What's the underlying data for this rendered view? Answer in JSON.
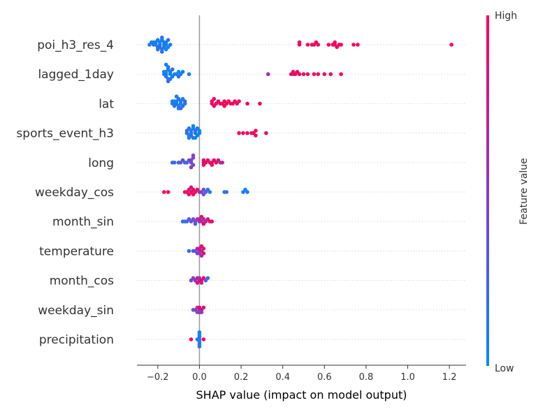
{
  "chart_data": {
    "type": "scatter",
    "subtype": "shap-beeswarm",
    "xlabel": "SHAP value (impact on model output)",
    "xlim": [
      -0.3,
      1.28
    ],
    "x_ticks": [
      -0.2,
      0.0,
      0.2,
      0.4,
      0.6,
      0.8,
      1.0,
      1.2
    ],
    "x_tick_labels": [
      "−0.2",
      "0.0",
      "0.2",
      "0.4",
      "0.6",
      "0.8",
      "1.0",
      "1.2"
    ],
    "zero_line": true,
    "grid": false,
    "colorbar": {
      "label": "Feature value",
      "high_label": "High",
      "low_label": "Low",
      "high_color": "#ff0052",
      "mid_color": "#8a3cc8",
      "low_color": "#008bfb",
      "position": "right"
    },
    "features": [
      {
        "name": "poi_h3_res_4",
        "values": [
          [
            -0.24,
            0.05
          ],
          [
            -0.23,
            0.1
          ],
          [
            -0.22,
            0.2
          ],
          [
            -0.22,
            0.05
          ],
          [
            -0.21,
            0.0
          ],
          [
            -0.21,
            0.15
          ],
          [
            -0.2,
            0.1
          ],
          [
            -0.2,
            0.05
          ],
          [
            -0.19,
            0.1
          ],
          [
            -0.19,
            0.0
          ],
          [
            -0.19,
            0.2
          ],
          [
            -0.18,
            0.05
          ],
          [
            -0.18,
            0.1
          ],
          [
            -0.18,
            0.15
          ],
          [
            -0.17,
            0.0
          ],
          [
            -0.17,
            0.1
          ],
          [
            -0.17,
            0.2
          ],
          [
            -0.16,
            0.05
          ],
          [
            -0.16,
            0.1
          ],
          [
            -0.15,
            0.0
          ],
          [
            -0.15,
            0.15
          ],
          [
            -0.14,
            0.1
          ],
          [
            -0.16,
            0.0
          ],
          [
            -0.18,
            0.2
          ],
          [
            -0.2,
            0.15
          ],
          [
            0.48,
            0.95
          ],
          [
            0.48,
            0.9
          ],
          [
            0.52,
            1.0
          ],
          [
            0.54,
            0.95
          ],
          [
            0.55,
            0.9
          ],
          [
            0.56,
            1.0
          ],
          [
            0.57,
            0.95
          ],
          [
            0.62,
            1.0
          ],
          [
            0.64,
            0.9
          ],
          [
            0.65,
            0.95
          ],
          [
            0.65,
            1.0
          ],
          [
            0.66,
            0.95
          ],
          [
            0.67,
            0.9
          ],
          [
            0.68,
            1.0
          ],
          [
            0.74,
            0.95
          ],
          [
            0.76,
            1.0
          ],
          [
            1.21,
            1.0
          ]
        ]
      },
      {
        "name": "lagged_1day",
        "values": [
          [
            -0.17,
            0.05
          ],
          [
            -0.17,
            0.15
          ],
          [
            -0.16,
            0.1
          ],
          [
            -0.16,
            0.0
          ],
          [
            -0.16,
            0.2
          ],
          [
            -0.15,
            0.05
          ],
          [
            -0.15,
            0.1
          ],
          [
            -0.15,
            0.15
          ],
          [
            -0.14,
            0.0
          ],
          [
            -0.14,
            0.1
          ],
          [
            -0.13,
            0.05
          ],
          [
            -0.13,
            0.2
          ],
          [
            -0.12,
            0.1
          ],
          [
            -0.11,
            0.05
          ],
          [
            -0.1,
            0.0
          ],
          [
            -0.1,
            0.15
          ],
          [
            -0.09,
            0.1
          ],
          [
            -0.08,
            0.05
          ],
          [
            -0.05,
            0.1
          ],
          [
            -0.15,
            0.2
          ],
          [
            -0.16,
            0.05
          ],
          [
            -0.14,
            0.15
          ],
          [
            0.33,
            0.6
          ],
          [
            0.44,
            0.85
          ],
          [
            0.45,
            0.9
          ],
          [
            0.46,
            0.95
          ],
          [
            0.47,
            0.9
          ],
          [
            0.48,
            1.0
          ],
          [
            0.5,
            0.9
          ],
          [
            0.52,
            0.95
          ],
          [
            0.55,
            1.0
          ],
          [
            0.57,
            0.95
          ],
          [
            0.6,
            0.9
          ],
          [
            0.63,
            0.95
          ],
          [
            0.68,
            1.0
          ],
          [
            0.45,
            0.9
          ]
        ]
      },
      {
        "name": "lat",
        "values": [
          [
            -0.13,
            0.05
          ],
          [
            -0.13,
            0.1
          ],
          [
            -0.12,
            0.2
          ],
          [
            -0.12,
            0.0
          ],
          [
            -0.11,
            0.15
          ],
          [
            -0.11,
            0.05
          ],
          [
            -0.1,
            0.1
          ],
          [
            -0.1,
            0.2
          ],
          [
            -0.09,
            0.0
          ],
          [
            -0.09,
            0.1
          ],
          [
            -0.08,
            0.15
          ],
          [
            -0.08,
            0.05
          ],
          [
            -0.07,
            0.1
          ],
          [
            -0.07,
            0.2
          ],
          [
            -0.1,
            0.05
          ],
          [
            -0.11,
            0.1
          ],
          [
            -0.12,
            0.15
          ],
          [
            -0.09,
            0.2
          ],
          [
            0.06,
            0.9
          ],
          [
            0.06,
            1.0
          ],
          [
            0.07,
            0.95
          ],
          [
            0.08,
            0.9
          ],
          [
            0.09,
            0.95
          ],
          [
            0.1,
            1.0
          ],
          [
            0.11,
            0.95
          ],
          [
            0.12,
            0.9
          ],
          [
            0.13,
            0.95
          ],
          [
            0.14,
            1.0
          ],
          [
            0.15,
            0.9
          ],
          [
            0.16,
            0.95
          ],
          [
            0.17,
            1.0
          ],
          [
            0.18,
            0.9
          ],
          [
            0.19,
            0.95
          ],
          [
            0.23,
            1.0
          ],
          [
            0.29,
            0.9
          ],
          [
            0.07,
            0.95
          ],
          [
            0.12,
            1.0
          ]
        ]
      },
      {
        "name": "sports_event_h3",
        "values": [
          [
            -0.06,
            0.1
          ],
          [
            -0.06,
            0.2
          ],
          [
            -0.05,
            0.05
          ],
          [
            -0.05,
            0.15
          ],
          [
            -0.04,
            0.0
          ],
          [
            -0.04,
            0.1
          ],
          [
            -0.04,
            0.2
          ],
          [
            -0.03,
            0.05
          ],
          [
            -0.03,
            0.15
          ],
          [
            -0.03,
            0.0
          ],
          [
            -0.02,
            0.1
          ],
          [
            -0.02,
            0.2
          ],
          [
            -0.01,
            0.05
          ],
          [
            -0.01,
            0.15
          ],
          [
            0.0,
            0.1
          ],
          [
            0.0,
            0.0
          ],
          [
            -0.05,
            0.1
          ],
          [
            -0.02,
            0.05
          ],
          [
            0.19,
            0.95
          ],
          [
            0.21,
            0.9
          ],
          [
            0.23,
            1.0
          ],
          [
            0.25,
            0.95
          ],
          [
            0.26,
            0.9
          ],
          [
            0.27,
            1.0
          ],
          [
            0.27,
            0.95
          ],
          [
            0.32,
            0.9
          ]
        ]
      },
      {
        "name": "long",
        "values": [
          [
            -0.13,
            0.15
          ],
          [
            -0.12,
            0.2
          ],
          [
            -0.1,
            0.25
          ],
          [
            -0.09,
            0.3
          ],
          [
            -0.08,
            0.35
          ],
          [
            -0.07,
            0.3
          ],
          [
            -0.06,
            0.25
          ],
          [
            -0.05,
            0.35
          ],
          [
            -0.04,
            0.4
          ],
          [
            -0.04,
            0.45
          ],
          [
            -0.03,
            0.4
          ],
          [
            -0.03,
            0.5
          ],
          [
            -0.04,
            0.55
          ],
          [
            -0.03,
            0.45
          ],
          [
            0.02,
            0.85
          ],
          [
            0.02,
            0.9
          ],
          [
            0.03,
            0.95
          ],
          [
            0.04,
            0.9
          ],
          [
            0.05,
            0.85
          ],
          [
            0.06,
            0.9
          ],
          [
            0.07,
            0.95
          ],
          [
            0.08,
            0.9
          ],
          [
            0.09,
            0.8
          ],
          [
            0.1,
            0.7
          ],
          [
            0.11,
            0.65
          ],
          [
            0.06,
            1.0
          ],
          [
            0.02,
            0.95
          ]
        ]
      },
      {
        "name": "weekday_cos",
        "values": [
          [
            -0.17,
            0.95
          ],
          [
            -0.15,
            1.0
          ],
          [
            -0.07,
            0.9
          ],
          [
            -0.06,
            0.95
          ],
          [
            -0.05,
            0.85
          ],
          [
            -0.04,
            0.9
          ],
          [
            -0.03,
            0.95
          ],
          [
            -0.02,
            0.85
          ],
          [
            -0.01,
            0.9
          ],
          [
            -0.03,
            1.0
          ],
          [
            -0.05,
            0.95
          ],
          [
            -0.04,
            0.8
          ],
          [
            0.01,
            0.5
          ],
          [
            0.02,
            0.4
          ],
          [
            0.03,
            0.3
          ],
          [
            0.04,
            0.2
          ],
          [
            0.05,
            0.1
          ],
          [
            0.12,
            0.15
          ],
          [
            0.13,
            0.2
          ],
          [
            0.21,
            0.1
          ],
          [
            0.22,
            0.0
          ],
          [
            0.23,
            0.1
          ],
          [
            0.0,
            0.6
          ],
          [
            0.02,
            0.35
          ]
        ]
      },
      {
        "name": "month_sin",
        "values": [
          [
            -0.08,
            0.2
          ],
          [
            -0.07,
            0.15
          ],
          [
            -0.06,
            0.25
          ],
          [
            -0.05,
            0.3
          ],
          [
            -0.04,
            0.35
          ],
          [
            -0.03,
            0.4
          ],
          [
            -0.02,
            0.45
          ],
          [
            -0.01,
            0.5
          ],
          [
            0.0,
            0.55
          ],
          [
            0.01,
            0.6
          ],
          [
            0.02,
            0.65
          ],
          [
            0.03,
            0.7
          ],
          [
            0.04,
            0.85
          ],
          [
            0.05,
            0.9
          ],
          [
            0.06,
            0.95
          ],
          [
            0.02,
            0.95
          ],
          [
            0.01,
            0.85
          ],
          [
            -0.02,
            0.3
          ],
          [
            0.0,
            0.75
          ]
        ]
      },
      {
        "name": "temperature",
        "values": [
          [
            -0.05,
            0.2
          ],
          [
            -0.03,
            0.3
          ],
          [
            -0.02,
            0.4
          ],
          [
            -0.01,
            0.5
          ],
          [
            0.0,
            0.6
          ],
          [
            0.01,
            0.7
          ],
          [
            0.02,
            0.85
          ],
          [
            0.02,
            0.95
          ],
          [
            0.01,
            0.9
          ],
          [
            0.0,
            0.8
          ],
          [
            -0.01,
            0.45
          ],
          [
            0.0,
            0.55
          ],
          [
            0.01,
            0.65
          ]
        ]
      },
      {
        "name": "month_cos",
        "values": [
          [
            -0.04,
            0.4
          ],
          [
            -0.03,
            0.5
          ],
          [
            -0.02,
            0.6
          ],
          [
            -0.01,
            0.7
          ],
          [
            0.0,
            0.8
          ],
          [
            0.01,
            0.9
          ],
          [
            0.02,
            0.95
          ],
          [
            0.03,
            0.3
          ],
          [
            0.04,
            0.2
          ],
          [
            -0.01,
            0.85
          ],
          [
            0.0,
            0.65
          ],
          [
            0.01,
            0.75
          ]
        ]
      },
      {
        "name": "weekday_sin",
        "values": [
          [
            -0.03,
            0.35
          ],
          [
            -0.02,
            0.45
          ],
          [
            -0.01,
            0.55
          ],
          [
            0.0,
            0.65
          ],
          [
            0.01,
            0.75
          ],
          [
            0.02,
            0.85
          ],
          [
            0.0,
            0.95
          ],
          [
            0.01,
            0.5
          ],
          [
            -0.01,
            0.4
          ],
          [
            0.0,
            0.6
          ]
        ]
      },
      {
        "name": "precipitation",
        "values": [
          [
            -0.04,
            0.95
          ],
          [
            -0.01,
            0.1
          ],
          [
            0.0,
            0.05
          ],
          [
            0.0,
            0.15
          ],
          [
            0.0,
            0.1
          ],
          [
            0.0,
            0.0
          ],
          [
            0.0,
            0.2
          ],
          [
            0.0,
            0.05
          ],
          [
            0.0,
            0.1
          ],
          [
            0.02,
            0.95
          ]
        ]
      }
    ]
  }
}
